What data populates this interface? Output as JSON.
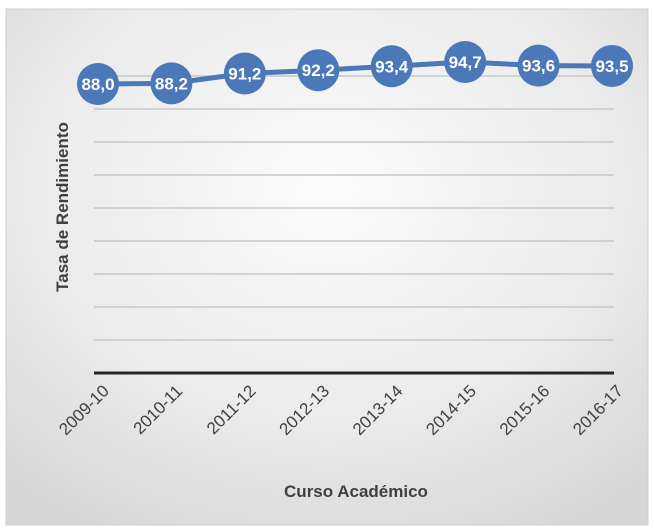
{
  "chart_data": {
    "type": "line",
    "title": "",
    "xlabel": "Curso Académico",
    "ylabel": "Tasa de Rendimiento",
    "categories": [
      "2009-10",
      "2010-11",
      "2011-12",
      "2012-13",
      "2013-14",
      "2014-15",
      "2015-16",
      "2016-17"
    ],
    "series": [
      {
        "values": [
          88.0,
          88.2,
          91.2,
          92.2,
          93.4,
          94.7,
          93.6,
          93.5
        ],
        "labels": [
          "88,0",
          "88,2",
          "91,2",
          "92,2",
          "93,4",
          "94,7",
          "93,6",
          "93,5"
        ],
        "color": "#4a78b8"
      }
    ],
    "ylim": [
      0,
      100
    ],
    "grid": true,
    "legend": "none",
    "background": "gradient-gray",
    "marker": "circle"
  }
}
